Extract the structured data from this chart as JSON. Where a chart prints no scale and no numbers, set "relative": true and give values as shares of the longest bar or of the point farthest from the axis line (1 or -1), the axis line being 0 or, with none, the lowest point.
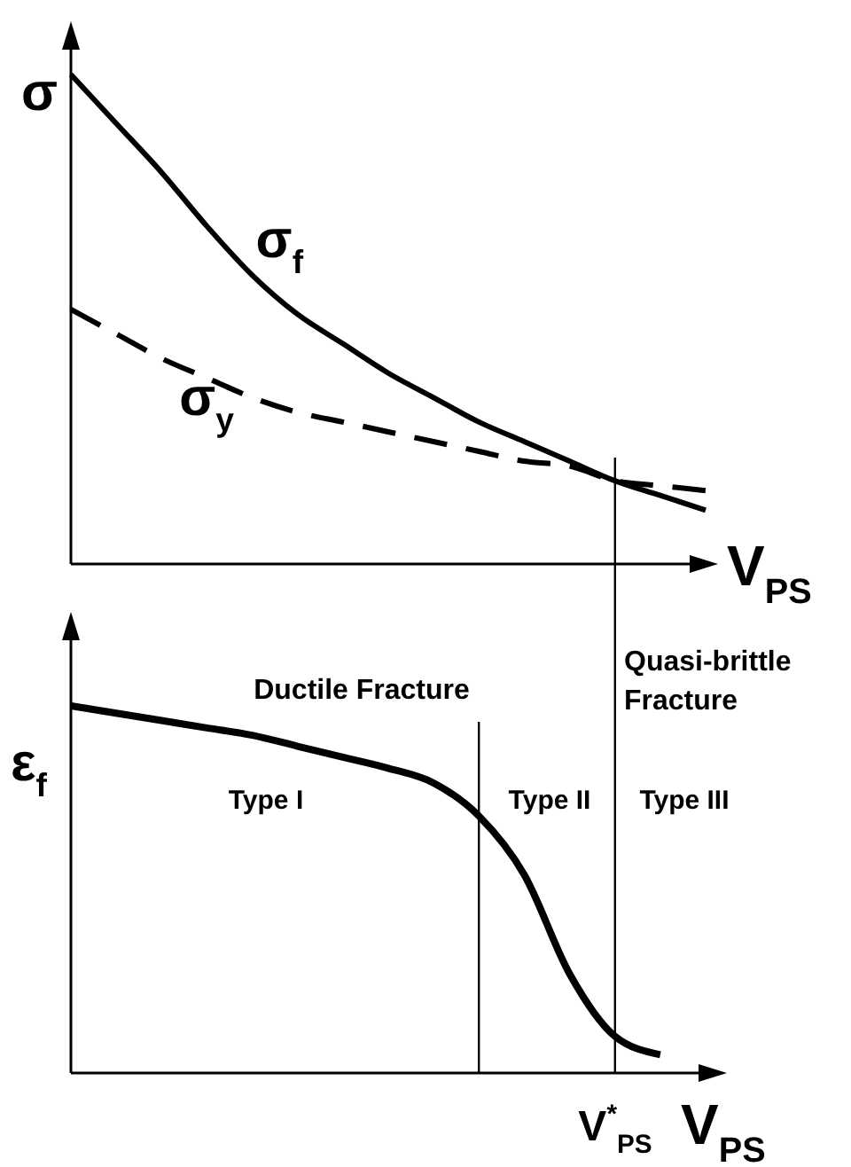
{
  "chart_data": [
    {
      "type": "line",
      "relative": true,
      "ylabel": "σ",
      "xlabel": "V$_{PS}$",
      "categories": [
        null,
        null,
        null,
        null,
        null,
        null,
        null,
        null,
        null,
        null,
        null,
        null,
        null,
        null,
        null
      ],
      "series": [
        {
          "name": "σ$_{f}$",
          "color": "#000000",
          "line_style": "solid",
          "values": [
            1,
            0.9,
            0.8,
            0.69,
            0.59,
            0.51,
            0.45,
            0.39,
            0.34,
            0.29,
            0.25,
            0.21,
            0.17,
            0.14,
            0.11
          ]
        },
        {
          "name": "σ$_{y}$",
          "color": "#000000",
          "line_style": "dashed",
          "values": [
            0.52,
            0.47,
            0.42,
            0.38,
            0.34,
            0.31,
            0.29,
            0.27,
            0.25,
            0.23,
            0.21,
            0.2,
            0.17,
            0.16,
            0.15
          ]
        }
      ]
    },
    {
      "type": "line",
      "relative": true,
      "ylabel": "ε$_{f}$",
      "xlabel": "V$_{PS}$",
      "categories": [
        null,
        null,
        null,
        null,
        null,
        null,
        null,
        null,
        null,
        null,
        null,
        null,
        null,
        null,
        null
      ],
      "series": [
        {
          "color": "#000000",
          "values": [
            1,
            0.98,
            0.96,
            0.94,
            0.92,
            0.89,
            0.86,
            0.83,
            0.79,
            0.7,
            0.54,
            0.27,
            0.1,
            0.05,
            null
          ]
        }
      ],
      "annotations": [
        "Ductile Fracture",
        "Quasi-brittle Fracture",
        "Type I",
        "Type II",
        "Type III",
        "V$^{*}$$_{PS}$"
      ]
    }
  ]
}
